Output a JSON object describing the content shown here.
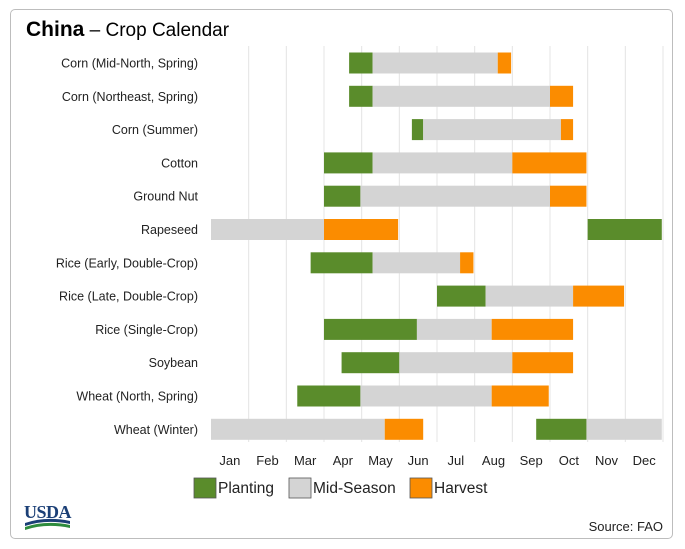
{
  "title": {
    "country": "China",
    "separator": "–",
    "subtitle": "Crop Calendar"
  },
  "source": "Source: FAO",
  "logo_text": "USDA",
  "colors": {
    "planting": "#5a8c2b",
    "mid_season": "#d4d4d4",
    "harvest": "#fb8c00",
    "grid": "#e4e4e4"
  },
  "chart_data": {
    "type": "bar",
    "subtype": "gantt",
    "months": [
      "Jan",
      "Feb",
      "Mar",
      "Apr",
      "May",
      "Jun",
      "Jul",
      "Aug",
      "Sep",
      "Oct",
      "Nov",
      "Dec"
    ],
    "legend": [
      {
        "key": "planting",
        "label": "Planting"
      },
      {
        "key": "mid_season",
        "label": "Mid-Season"
      },
      {
        "key": "harvest",
        "label": "Harvest"
      }
    ],
    "legend_position": "bottom",
    "grid": true,
    "crops": [
      {
        "name": "Corn (Mid-North, Spring)",
        "segments": [
          {
            "phase": "planting",
            "start": "Apr 21",
            "end": "May 10"
          },
          {
            "phase": "mid_season",
            "start": "May 10",
            "end": "Aug 20"
          },
          {
            "phase": "harvest",
            "start": "Aug 20",
            "end": "Aug 31"
          }
        ]
      },
      {
        "name": "Corn (Northeast, Spring)",
        "segments": [
          {
            "phase": "planting",
            "start": "Apr 21",
            "end": "May 10"
          },
          {
            "phase": "mid_season",
            "start": "May 10",
            "end": "Oct 1"
          },
          {
            "phase": "harvest",
            "start": "Oct 1",
            "end": "Oct 20"
          }
        ]
      },
      {
        "name": "Corn (Summer)",
        "segments": [
          {
            "phase": "planting",
            "start": "Jun 11",
            "end": "Jun 20"
          },
          {
            "phase": "mid_season",
            "start": "Jun 20",
            "end": "Oct 10"
          },
          {
            "phase": "harvest",
            "start": "Oct 10",
            "end": "Oct 20"
          }
        ]
      },
      {
        "name": "Cotton",
        "segments": [
          {
            "phase": "planting",
            "start": "Apr 1",
            "end": "May 10"
          },
          {
            "phase": "mid_season",
            "start": "May 10",
            "end": "Sep 1"
          },
          {
            "phase": "harvest",
            "start": "Sep 1",
            "end": "Oct 31"
          }
        ]
      },
      {
        "name": "Ground Nut",
        "segments": [
          {
            "phase": "planting",
            "start": "Apr 1",
            "end": "Apr 30"
          },
          {
            "phase": "mid_season",
            "start": "Apr 30",
            "end": "Oct 1"
          },
          {
            "phase": "harvest",
            "start": "Oct 1",
            "end": "Oct 31"
          }
        ]
      },
      {
        "name": "Rapeseed",
        "segments": [
          {
            "phase": "mid_season",
            "start": "Jan 1",
            "end": "Apr 1"
          },
          {
            "phase": "harvest",
            "start": "Apr 1",
            "end": "May 31"
          },
          {
            "phase": "planting",
            "start": "Nov 1",
            "end": "Dec 31"
          }
        ]
      },
      {
        "name": "Rice (Early, Double-Crop)",
        "segments": [
          {
            "phase": "planting",
            "start": "Mar 21",
            "end": "May 10"
          },
          {
            "phase": "mid_season",
            "start": "May 10",
            "end": "Jul 20"
          },
          {
            "phase": "harvest",
            "start": "Jul 20",
            "end": "Jul 31"
          }
        ]
      },
      {
        "name": "Rice (Late, Double-Crop)",
        "segments": [
          {
            "phase": "planting",
            "start": "Jul 1",
            "end": "Aug 10"
          },
          {
            "phase": "mid_season",
            "start": "Aug 10",
            "end": "Oct 20"
          },
          {
            "phase": "harvest",
            "start": "Oct 20",
            "end": "Nov 30"
          }
        ]
      },
      {
        "name": "Rice (Single-Crop)",
        "segments": [
          {
            "phase": "planting",
            "start": "Apr 1",
            "end": "Jun 15"
          },
          {
            "phase": "mid_season",
            "start": "Jun 15",
            "end": "Aug 15"
          },
          {
            "phase": "harvest",
            "start": "Aug 15",
            "end": "Oct 20"
          }
        ]
      },
      {
        "name": "Soybean",
        "segments": [
          {
            "phase": "planting",
            "start": "Apr 15",
            "end": "Jun 1"
          },
          {
            "phase": "mid_season",
            "start": "Jun 1",
            "end": "Sep 1"
          },
          {
            "phase": "harvest",
            "start": "Sep 1",
            "end": "Oct 20"
          }
        ]
      },
      {
        "name": "Wheat (North, Spring)",
        "segments": [
          {
            "phase": "planting",
            "start": "Mar 10",
            "end": "Apr 30"
          },
          {
            "phase": "mid_season",
            "start": "Apr 30",
            "end": "Aug 15"
          },
          {
            "phase": "harvest",
            "start": "Aug 15",
            "end": "Sep 30"
          }
        ]
      },
      {
        "name": "Wheat (Winter)",
        "segments": [
          {
            "phase": "mid_season",
            "start": "Jan 1",
            "end": "May 20"
          },
          {
            "phase": "harvest",
            "start": "May 20",
            "end": "Jun 20"
          },
          {
            "phase": "planting",
            "start": "Sep 20",
            "end": "Oct 31"
          },
          {
            "phase": "mid_season",
            "start": "Oct 31",
            "end": "Dec 31"
          }
        ]
      }
    ]
  }
}
